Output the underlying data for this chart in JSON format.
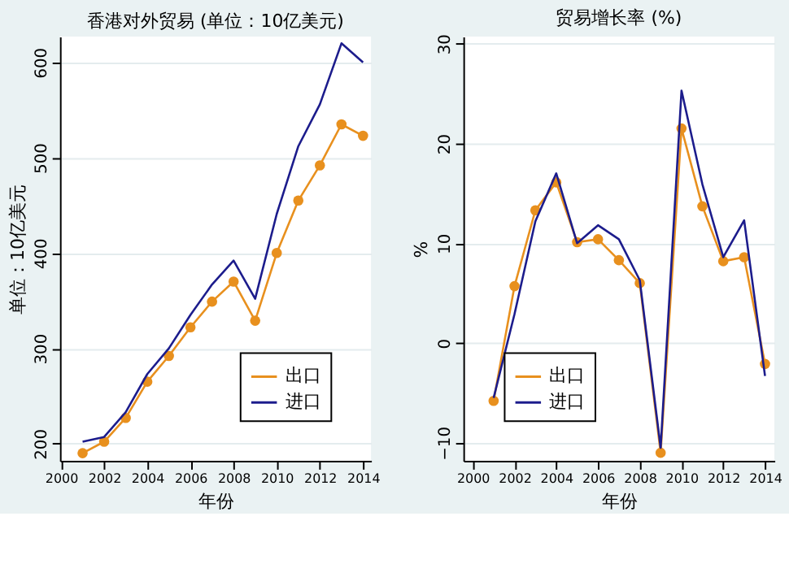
{
  "chart_data": [
    {
      "type": "line",
      "title": "香港对外贸易 (单位：10亿美元)",
      "xlabel": "年份",
      "ylabel": "单位：10亿美元",
      "x": [
        2001,
        2002,
        2003,
        2004,
        2005,
        2006,
        2007,
        2008,
        2009,
        2010,
        2011,
        2012,
        2013,
        2014
      ],
      "xlim": [
        1999.95,
        2014.37
      ],
      "xticks": [
        2000,
        2002,
        2004,
        2006,
        2008,
        2010,
        2012,
        2014
      ],
      "ylim": [
        182,
        627
      ],
      "yticks": [
        200,
        300,
        400,
        500,
        600
      ],
      "grid": "y",
      "legend": "bottom right",
      "series": [
        {
          "name": "出口",
          "color": "#e8901e",
          "marker": "circle",
          "values": [
            190,
            202,
            227,
            265,
            292,
            322,
            349,
            370,
            329,
            400,
            455,
            492,
            535,
            523
          ]
        },
        {
          "name": "进口",
          "color": "#1c1c8c",
          "marker": "none",
          "values": [
            202,
            207,
            233,
            273,
            300,
            335,
            367,
            392,
            352,
            441,
            512,
            556,
            620,
            600
          ]
        }
      ]
    },
    {
      "type": "line",
      "title": "贸易增长率 (%)",
      "xlabel": "年份",
      "ylabel": "%",
      "x": [
        2001,
        2002,
        2003,
        2004,
        2005,
        2006,
        2007,
        2008,
        2009,
        2010,
        2011,
        2012,
        2013,
        2014
      ],
      "xlim": [
        1999.55,
        2014.45
      ],
      "xticks": [
        2000,
        2002,
        2004,
        2006,
        2008,
        2010,
        2012,
        2014
      ],
      "ylim": [
        -11.8,
        30.7
      ],
      "yticks": [
        -10,
        0,
        10,
        20,
        30
      ],
      "grid": "y",
      "legend": "bottom left",
      "series": [
        {
          "name": "出口",
          "color": "#e8901e",
          "marker": "circle",
          "values": [
            -5.8,
            5.7,
            13.3,
            16.1,
            10.1,
            10.4,
            8.3,
            6.0,
            -11.0,
            21.5,
            13.7,
            8.2,
            8.6,
            -2.1
          ]
        },
        {
          "name": "进口",
          "color": "#1c1c8c",
          "marker": "none",
          "values": [
            -5.5,
            2.9,
            12.2,
            17.0,
            10.0,
            11.8,
            10.4,
            6.3,
            -10.5,
            25.3,
            15.9,
            8.6,
            12.3,
            -3.3
          ]
        }
      ]
    }
  ]
}
